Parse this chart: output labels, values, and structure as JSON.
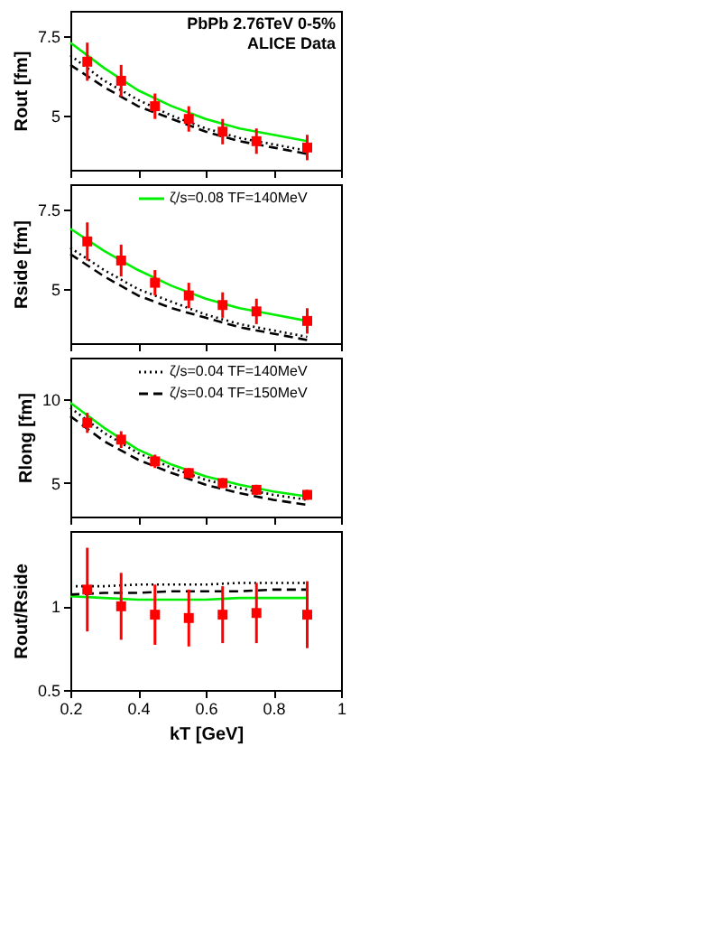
{
  "chart_data": [
    {
      "type": "line",
      "ylabel": "Rout [fm]",
      "annotations": [
        "PbPb 2.76TeV 0-5%",
        "ALICE Data"
      ],
      "xlim": [
        0.2,
        1.0
      ],
      "xticks": [
        0.2,
        0.4,
        0.6,
        0.8,
        1
      ],
      "ylim": [
        3.3,
        8.3
      ],
      "yticks": [
        5,
        7.5
      ],
      "tick_labels": "y",
      "grid": false,
      "legend": false,
      "series": [
        {
          "type": "line",
          "color": "#00ee00",
          "line_style": "solid",
          "x": [
            0.2,
            0.3,
            0.4,
            0.5,
            0.6,
            0.7,
            0.8,
            0.9
          ],
          "values": [
            7.3,
            6.5,
            5.8,
            5.3,
            4.9,
            4.6,
            4.4,
            4.2
          ]
        },
        {
          "type": "line",
          "color": "#000000",
          "line_style": "dotted",
          "x": [
            0.2,
            0.3,
            0.4,
            0.5,
            0.6,
            0.7,
            0.8,
            0.9
          ],
          "values": [
            6.9,
            6.1,
            5.5,
            5.0,
            4.6,
            4.3,
            4.1,
            3.9
          ]
        },
        {
          "type": "line",
          "color": "#000000",
          "line_style": "dashed",
          "x": [
            0.2,
            0.3,
            0.4,
            0.5,
            0.6,
            0.7,
            0.8,
            0.9
          ],
          "values": [
            6.6,
            5.9,
            5.3,
            4.9,
            4.5,
            4.2,
            4.0,
            3.8
          ]
        },
        {
          "type": "scatter",
          "color": "#ff0000",
          "marker": "square",
          "x": [
            0.25,
            0.35,
            0.45,
            0.55,
            0.65,
            0.75,
            0.9
          ],
          "values": [
            6.7,
            6.1,
            5.3,
            4.9,
            4.5,
            4.2,
            4.0
          ],
          "errors": [
            0.6,
            0.5,
            0.4,
            0.4,
            0.4,
            0.4,
            0.4
          ]
        }
      ]
    },
    {
      "type": "line",
      "ylabel": "Rside [fm]",
      "xlim": [
        0.2,
        1.0
      ],
      "xticks": [
        0.2,
        0.4,
        0.6,
        0.8,
        1
      ],
      "ylim": [
        3.3,
        8.3
      ],
      "yticks": [
        5,
        7.5
      ],
      "tick_labels": "y",
      "grid": false,
      "legend": "top right",
      "series": [
        {
          "type": "line",
          "name": "ζ/s=0.08 TF=140MeV",
          "color": "#00ee00",
          "line_style": "solid",
          "x": [
            0.2,
            0.3,
            0.4,
            0.5,
            0.6,
            0.7,
            0.8,
            0.9
          ],
          "values": [
            6.9,
            6.2,
            5.6,
            5.1,
            4.7,
            4.4,
            4.2,
            4.0
          ]
        },
        {
          "type": "line",
          "color": "#000000",
          "line_style": "dotted",
          "x": [
            0.2,
            0.3,
            0.4,
            0.5,
            0.6,
            0.7,
            0.8,
            0.9
          ],
          "values": [
            6.3,
            5.6,
            5.0,
            4.6,
            4.2,
            3.9,
            3.7,
            3.5
          ]
        },
        {
          "type": "line",
          "color": "#000000",
          "line_style": "dashed",
          "x": [
            0.2,
            0.3,
            0.4,
            0.5,
            0.6,
            0.7,
            0.8,
            0.9
          ],
          "values": [
            6.1,
            5.4,
            4.8,
            4.4,
            4.1,
            3.8,
            3.6,
            3.4
          ]
        },
        {
          "type": "scatter",
          "color": "#ff0000",
          "marker": "square",
          "x": [
            0.25,
            0.35,
            0.45,
            0.55,
            0.65,
            0.75,
            0.9
          ],
          "values": [
            6.5,
            5.9,
            5.2,
            4.8,
            4.5,
            4.3,
            4.0
          ],
          "errors": [
            0.6,
            0.5,
            0.4,
            0.4,
            0.4,
            0.4,
            0.4
          ]
        }
      ]
    },
    {
      "type": "line",
      "ylabel": "Rlong [fm]",
      "xlim": [
        0.2,
        1.0
      ],
      "xticks": [
        0.2,
        0.4,
        0.6,
        0.8,
        1
      ],
      "ylim": [
        3.0,
        12.5
      ],
      "yticks": [
        5,
        10
      ],
      "tick_labels": "y",
      "grid": false,
      "legend": "top right",
      "series": [
        {
          "type": "line",
          "color": "#00ee00",
          "line_style": "solid",
          "x": [
            0.2,
            0.3,
            0.4,
            0.5,
            0.6,
            0.7,
            0.8,
            0.9
          ],
          "values": [
            9.8,
            8.3,
            7.0,
            6.1,
            5.4,
            4.9,
            4.5,
            4.2
          ]
        },
        {
          "type": "line",
          "name": "ζ/s=0.04 TF=140MeV",
          "color": "#000000",
          "line_style": "dotted",
          "x": [
            0.2,
            0.3,
            0.4,
            0.5,
            0.6,
            0.7,
            0.8,
            0.9
          ],
          "values": [
            9.5,
            8.0,
            6.8,
            5.9,
            5.2,
            4.7,
            4.3,
            4.0
          ]
        },
        {
          "type": "line",
          "name": "ζ/s=0.04 TF=150MeV",
          "color": "#000000",
          "line_style": "dashed",
          "x": [
            0.2,
            0.3,
            0.4,
            0.5,
            0.6,
            0.7,
            0.8,
            0.9
          ],
          "values": [
            9.0,
            7.5,
            6.4,
            5.6,
            4.9,
            4.4,
            4.0,
            3.7
          ]
        },
        {
          "type": "scatter",
          "color": "#ff0000",
          "marker": "square",
          "x": [
            0.25,
            0.35,
            0.45,
            0.55,
            0.65,
            0.75,
            0.9
          ],
          "values": [
            8.6,
            7.6,
            6.3,
            5.6,
            5.0,
            4.6,
            4.3
          ],
          "errors": [
            0.6,
            0.5,
            0.4,
            0.3,
            0.3,
            0.3,
            0.3
          ]
        }
      ]
    },
    {
      "type": "line",
      "ylabel": "Rout/Rside",
      "xlabel": "kT [GeV]",
      "xlim": [
        0.2,
        1.0
      ],
      "xticks": [
        0.2,
        0.4,
        0.6,
        0.8,
        1
      ],
      "ylim": [
        0.5,
        1.45
      ],
      "yticks": [
        0.5,
        1
      ],
      "grid": false,
      "legend": false,
      "series": [
        {
          "type": "line",
          "color": "#00ee00",
          "line_style": "solid",
          "x": [
            0.2,
            0.3,
            0.4,
            0.5,
            0.6,
            0.7,
            0.8,
            0.9
          ],
          "values": [
            1.06,
            1.05,
            1.04,
            1.04,
            1.04,
            1.05,
            1.05,
            1.05
          ]
        },
        {
          "type": "line",
          "color": "#000000",
          "line_style": "dotted",
          "x": [
            0.2,
            0.3,
            0.4,
            0.5,
            0.6,
            0.7,
            0.8,
            0.9
          ],
          "values": [
            1.12,
            1.12,
            1.13,
            1.13,
            1.13,
            1.14,
            1.14,
            1.14
          ]
        },
        {
          "type": "line",
          "color": "#000000",
          "line_style": "dashed",
          "x": [
            0.2,
            0.3,
            0.4,
            0.5,
            0.6,
            0.7,
            0.8,
            0.9
          ],
          "values": [
            1.07,
            1.08,
            1.08,
            1.09,
            1.09,
            1.09,
            1.1,
            1.1
          ]
        },
        {
          "type": "scatter",
          "color": "#ff0000",
          "marker": "square",
          "x": [
            0.25,
            0.35,
            0.45,
            0.55,
            0.65,
            0.75,
            0.9
          ],
          "values": [
            1.1,
            1.0,
            0.95,
            0.93,
            0.95,
            0.96,
            0.95
          ],
          "errors": [
            0.25,
            0.2,
            0.18,
            0.17,
            0.17,
            0.18,
            0.2
          ]
        }
      ]
    }
  ]
}
